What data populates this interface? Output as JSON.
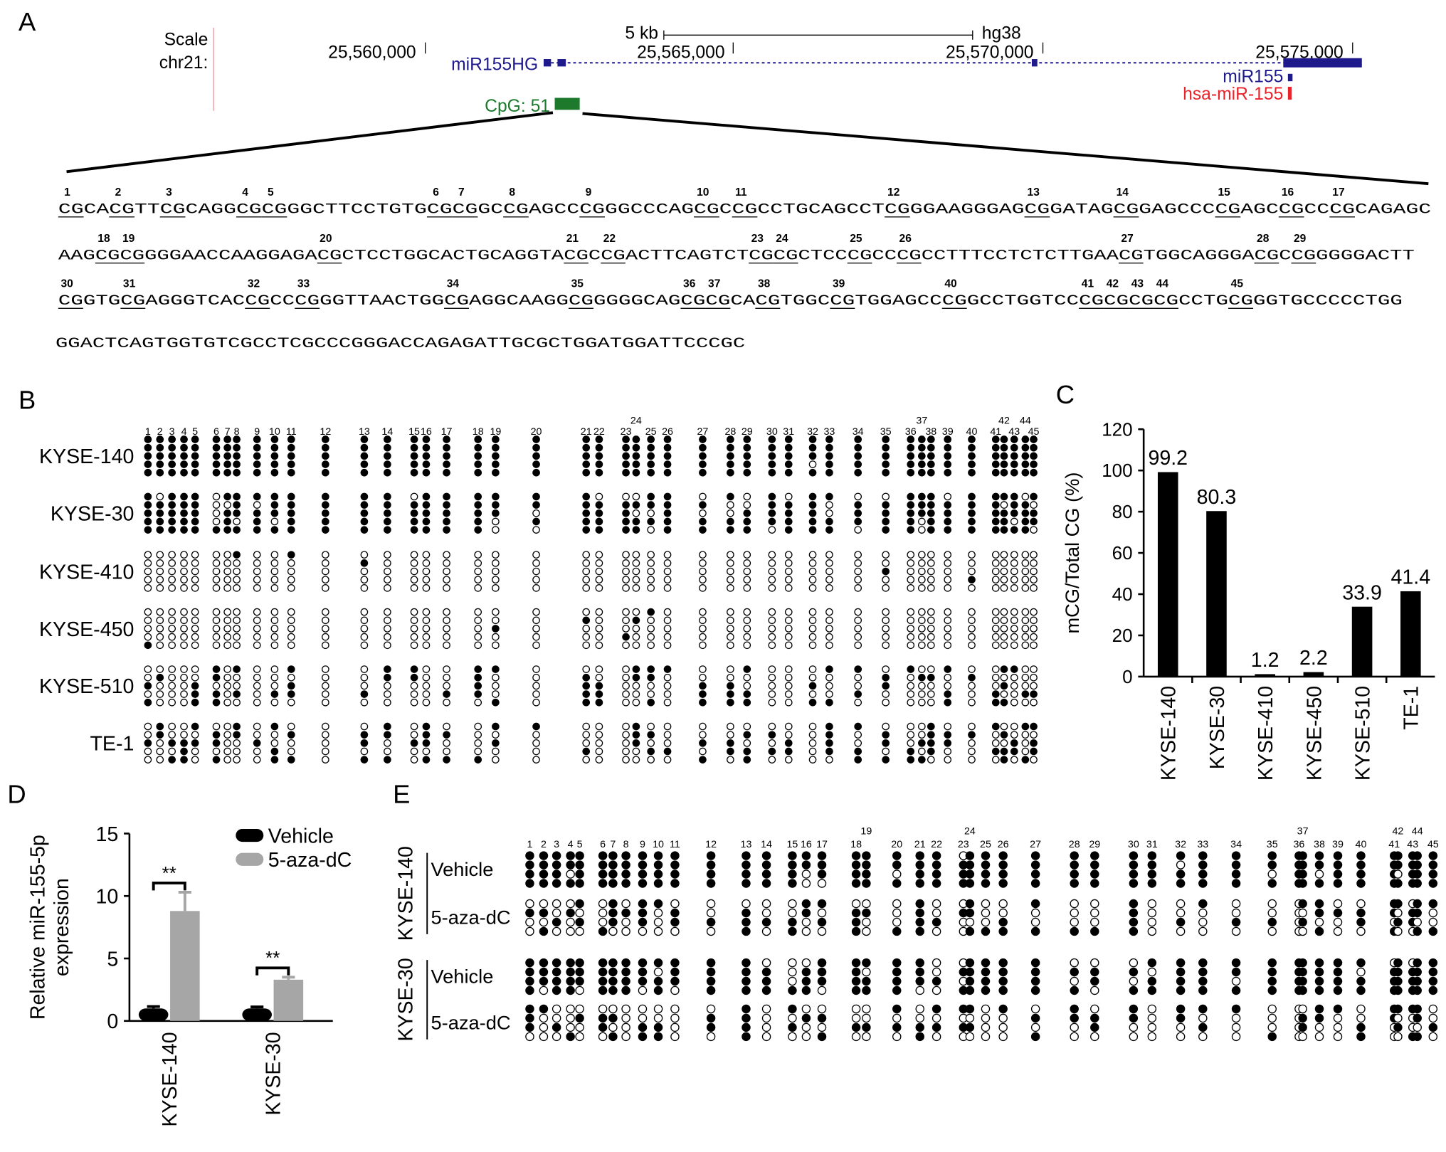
{
  "panel_labels": [
    "A",
    "B",
    "C",
    "D",
    "E"
  ],
  "genome": {
    "scale_label": "Scale",
    "chr_label": "chr21:",
    "scale_bar": "5 kb",
    "assembly": "hg38",
    "positions": [
      "25,560,000",
      "25,565,000",
      "25,570,000",
      "25,575,000"
    ],
    "gene": "miR155HG",
    "mir": "miR155",
    "hsa": "hsa-miR-155",
    "cpg": "CpG: 51"
  },
  "sequence": {
    "lines": [
      {
        "text": "CGCACGTTCGCAGGCGCGGGCTTCCTGTGCGCGGCCGAGCCCGGGCCCAGCGCCGCCTGCAGCCTCGGGAAGGGAGCGGATAGCGGAGCCCCGAGCCGCCCGCAGAGC",
        "cpg_numbers": [
          1,
          2,
          3,
          4,
          5,
          6,
          7,
          8,
          9,
          10,
          11,
          12,
          13,
          14,
          15,
          16,
          17
        ]
      },
      {
        "text": "AAGCGCGGGGAACCAAGGAGACGCTCCTGGCACTGCAGGTACGCCGACTTCAGTCTCGCGCTCCCGCCCGCCTTTCCTCTCTTGAACGTGGCAGGGACGCCGGGGGACTT",
        "cpg_numbers": [
          18,
          19,
          20,
          21,
          22,
          23,
          24,
          25,
          26,
          27,
          28,
          29
        ]
      },
      {
        "text": "CGGTGCGAGGGTCACCGCCCGGGTTAACTGGCGAGGCAAGGCGGGGGCAGCGCGCACGTGGCCGTGGAGCCCGGCCTGGTCCCGCGCGCGCCTGCGGGTGCCCCCTGG",
        "cpg_numbers": [
          30,
          31,
          32,
          33,
          34,
          35,
          36,
          37,
          38,
          39,
          40,
          41,
          42,
          43,
          44,
          45
        ]
      },
      {
        "text": "GGACTCAGTGGTGTCGCCTCGCCCGGGACCAGAGATTGCGCTGGATGGATTCCCGC"
      }
    ]
  },
  "dot_plot_b": {
    "rows": [
      "KYSE-140",
      "KYSE-30",
      "KYSE-410",
      "KYSE-450",
      "KYSE-510",
      "TE-1"
    ],
    "cpg_labels": [
      1,
      2,
      3,
      4,
      5,
      6,
      7,
      8,
      9,
      10,
      11,
      12,
      13,
      14,
      15,
      16,
      17,
      18,
      19,
      20,
      21,
      22,
      23,
      24,
      25,
      26,
      27,
      28,
      29,
      30,
      31,
      32,
      33,
      34,
      35,
      36,
      37,
      38,
      39,
      40,
      41,
      42,
      43,
      44,
      45
    ]
  },
  "dot_plot_e": {
    "groups": [
      {
        "name": "KYSE-140",
        "treatments": [
          "Vehicle",
          "5-aza-dC"
        ]
      },
      {
        "name": "KYSE-30",
        "treatments": [
          "Vehicle",
          "5-aza-dC"
        ]
      }
    ],
    "cpg_labels": [
      1,
      2,
      3,
      4,
      5,
      6,
      7,
      8,
      9,
      10,
      11,
      12,
      13,
      14,
      15,
      16,
      17,
      18,
      19,
      20,
      21,
      22,
      23,
      24,
      25,
      26,
      27,
      28,
      29,
      30,
      31,
      32,
      33,
      34,
      35,
      36,
      37,
      38,
      39,
      40,
      41,
      42,
      43,
      44,
      45
    ]
  },
  "chart_data": [
    {
      "type": "bar",
      "categories": [
        "KYSE-140",
        "KYSE-30",
        "KYSE-410",
        "KYSE-450",
        "KYSE-510",
        "TE-1"
      ],
      "values": [
        99.2,
        80.3,
        1.2,
        2.2,
        33.9,
        41.4
      ],
      "color": "#000000",
      "ylim": [
        0,
        120
      ],
      "yticks": [
        0,
        20,
        40,
        60,
        80,
        100,
        120
      ],
      "ylabel": "mCG/Total CG (%)"
    },
    {
      "type": "grouped_bar",
      "categories": [
        "KYSE-140",
        "KYSE-30"
      ],
      "series": [
        {
          "name": "Vehicle",
          "color": "#000000",
          "values": [
            1.0,
            1.0
          ],
          "errors": [
            0.15,
            0.12
          ]
        },
        {
          "name": "5-aza-dC",
          "color": "#a6a6a6",
          "values": [
            8.8,
            3.3
          ],
          "errors": [
            1.5,
            0.2
          ]
        }
      ],
      "ylim": [
        0,
        15
      ],
      "yticks": [
        0,
        5,
        10,
        15
      ],
      "ylabel": [
        "Relative miR-155-5p",
        "expression"
      ],
      "annotations": [
        "**",
        "**"
      ]
    }
  ]
}
